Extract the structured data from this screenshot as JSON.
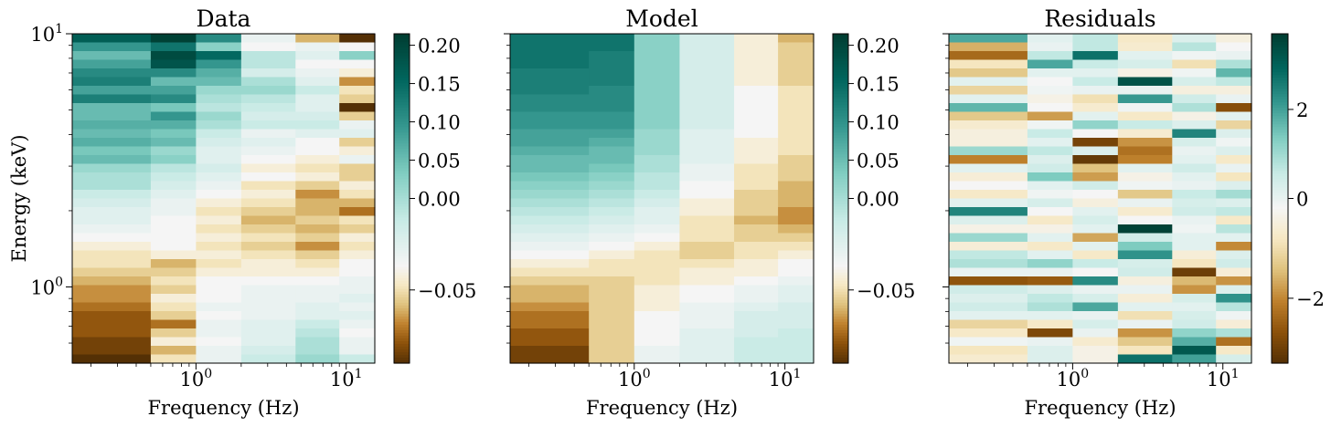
{
  "chart_data": [
    {
      "type": "heatmap",
      "title": "Data",
      "xlabel": "Frequency (Hz)",
      "ylabel": "Energy (keV)",
      "x_scale": "log",
      "y_scale": "log",
      "xlim": [
        0.15,
        15.5
      ],
      "ylim": [
        0.5,
        10
      ],
      "x_edges": [
        0.15,
        0.5,
        1.0,
        2.0,
        4.6,
        9.0,
        15.5
      ],
      "x_tick_labels": [
        "10^0",
        "10^1"
      ],
      "y_tick_labels": [
        "10^0",
        "10^1"
      ],
      "colormap": "BrBG",
      "colorbar": {
        "vmin": -0.09,
        "vmax": 0.215,
        "ticks": [
          -0.05,
          0.0,
          0.05,
          0.1,
          0.15,
          0.2
        ],
        "tick_labels": [
          "−0.05",
          "0.00",
          "0.05",
          "0.10",
          "0.15",
          "0.20"
        ]
      },
      "values_top_to_bottom": [
        [
          0.18,
          0.21,
          0.14,
          0.01,
          -0.04,
          -0.09
        ],
        [
          0.13,
          0.16,
          0.08,
          0.0,
          0.01,
          0.0
        ],
        [
          0.1,
          0.2,
          0.17,
          0.05,
          0.02,
          0.08
        ],
        [
          0.12,
          0.19,
          0.13,
          0.05,
          0.0,
          0.0
        ],
        [
          0.14,
          0.14,
          0.11,
          0.03,
          0.01,
          -0.01
        ],
        [
          0.15,
          0.1,
          0.1,
          0.06,
          0.02,
          -0.05
        ],
        [
          0.12,
          0.12,
          0.07,
          0.07,
          0.04,
          -0.02
        ],
        [
          0.15,
          0.14,
          0.06,
          0.05,
          0.02,
          -0.03
        ],
        [
          0.1,
          0.09,
          0.05,
          0.04,
          0.02,
          -0.09
        ],
        [
          0.1,
          0.13,
          0.07,
          0.03,
          0.03,
          -0.03
        ],
        [
          0.11,
          0.11,
          0.06,
          0.04,
          0.04,
          0.01
        ],
        [
          0.1,
          0.09,
          0.04,
          0.01,
          0.02,
          0.02
        ],
        [
          0.11,
          0.1,
          0.03,
          0.02,
          0.0,
          -0.03
        ],
        [
          0.09,
          0.07,
          0.02,
          0.01,
          0.0,
          -0.01
        ],
        [
          0.1,
          0.08,
          0.02,
          0.0,
          -0.01,
          0.01
        ],
        [
          0.07,
          0.05,
          0.03,
          -0.01,
          -0.02,
          -0.03
        ],
        [
          0.06,
          0.04,
          0.02,
          0.0,
          -0.01,
          -0.03
        ],
        [
          0.06,
          0.03,
          0.01,
          -0.02,
          -0.03,
          -0.01
        ],
        [
          0.04,
          0.02,
          0.0,
          -0.01,
          -0.05,
          -0.02
        ],
        [
          0.03,
          0.01,
          -0.01,
          -0.02,
          -0.04,
          -0.04
        ],
        [
          0.02,
          0.01,
          -0.02,
          -0.03,
          -0.04,
          -0.06
        ],
        [
          0.02,
          0.0,
          -0.01,
          -0.04,
          -0.03,
          -0.02
        ],
        [
          0.01,
          0.0,
          -0.02,
          -0.03,
          -0.04,
          -0.03
        ],
        [
          0.0,
          0.0,
          -0.01,
          -0.02,
          -0.03,
          -0.01
        ],
        [
          -0.01,
          0.0,
          -0.02,
          -0.03,
          -0.05,
          -0.02
        ],
        [
          -0.02,
          -0.01,
          -0.01,
          -0.02,
          -0.03,
          -0.01
        ],
        [
          -0.02,
          -0.04,
          -0.02,
          -0.01,
          -0.02,
          0.0
        ],
        [
          -0.03,
          -0.03,
          -0.01,
          -0.01,
          -0.01,
          0.0
        ],
        [
          -0.04,
          -0.02,
          0.0,
          0.0,
          0.0,
          0.01
        ],
        [
          -0.05,
          -0.03,
          0.0,
          0.01,
          0.01,
          0.01
        ],
        [
          -0.05,
          -0.01,
          0.0,
          0.01,
          0.01,
          0.02
        ],
        [
          -0.06,
          -0.02,
          0.01,
          0.01,
          0.02,
          0.01
        ],
        [
          -0.07,
          -0.03,
          0.0,
          0.01,
          0.02,
          0.02
        ],
        [
          -0.07,
          -0.06,
          0.01,
          0.02,
          0.04,
          0.01
        ],
        [
          -0.07,
          -0.03,
          0.01,
          0.02,
          0.05,
          0.0
        ],
        [
          -0.08,
          -0.01,
          0.0,
          0.02,
          0.06,
          0.01
        ],
        [
          -0.08,
          -0.04,
          0.01,
          0.03,
          0.06,
          0.01
        ],
        [
          -0.09,
          -0.02,
          0.01,
          0.04,
          0.07,
          0.04
        ]
      ]
    },
    {
      "type": "heatmap",
      "title": "Model",
      "xlabel": "Frequency (Hz)",
      "ylabel": "",
      "x_scale": "log",
      "y_scale": "log",
      "xlim": [
        0.15,
        15.5
      ],
      "ylim": [
        0.5,
        10
      ],
      "x_edges": [
        0.15,
        0.5,
        1.0,
        2.0,
        4.6,
        9.0,
        15.5
      ],
      "x_tick_labels": [
        "10^0",
        "10^1"
      ],
      "colormap": "BrBG",
      "colorbar": {
        "vmin": -0.09,
        "vmax": 0.215,
        "ticks": [
          -0.05,
          0.0,
          0.05,
          0.1,
          0.15,
          0.2
        ],
        "tick_labels": [
          "−0.05",
          "0.00",
          "0.05",
          "0.10",
          "0.15",
          "0.20"
        ]
      },
      "values_top_to_bottom": [
        [
          0.16,
          0.16,
          0.08,
          0.03,
          -0.01,
          -0.04
        ],
        [
          0.16,
          0.16,
          0.08,
          0.03,
          -0.01,
          -0.03
        ],
        [
          0.16,
          0.15,
          0.08,
          0.03,
          -0.01,
          -0.03
        ],
        [
          0.16,
          0.15,
          0.08,
          0.03,
          -0.01,
          -0.03
        ],
        [
          0.15,
          0.15,
          0.08,
          0.03,
          -0.01,
          -0.03
        ],
        [
          0.15,
          0.15,
          0.08,
          0.03,
          -0.01,
          -0.03
        ],
        [
          0.15,
          0.14,
          0.08,
          0.03,
          0.0,
          -0.02
        ],
        [
          0.14,
          0.14,
          0.08,
          0.03,
          0.0,
          -0.02
        ],
        [
          0.14,
          0.14,
          0.08,
          0.03,
          0.0,
          -0.02
        ],
        [
          0.13,
          0.13,
          0.08,
          0.03,
          0.0,
          -0.02
        ],
        [
          0.13,
          0.13,
          0.08,
          0.03,
          0.0,
          -0.02
        ],
        [
          0.12,
          0.12,
          0.07,
          0.02,
          0.0,
          -0.02
        ],
        [
          0.12,
          0.11,
          0.07,
          0.02,
          -0.01,
          -0.02
        ],
        [
          0.11,
          0.1,
          0.07,
          0.02,
          -0.01,
          -0.02
        ],
        [
          0.1,
          0.1,
          0.06,
          0.02,
          -0.01,
          -0.03
        ],
        [
          0.1,
          0.09,
          0.06,
          0.01,
          -0.02,
          -0.03
        ],
        [
          0.09,
          0.08,
          0.05,
          0.01,
          -0.02,
          -0.03
        ],
        [
          0.08,
          0.07,
          0.05,
          0.0,
          -0.02,
          -0.04
        ],
        [
          0.07,
          0.06,
          0.04,
          0.0,
          -0.03,
          -0.04
        ],
        [
          0.06,
          0.05,
          0.03,
          -0.01,
          -0.03,
          -0.04
        ],
        [
          0.05,
          0.04,
          0.02,
          -0.01,
          -0.03,
          -0.05
        ],
        [
          0.04,
          0.03,
          0.02,
          -0.02,
          -0.04,
          -0.05
        ],
        [
          0.03,
          0.02,
          0.01,
          -0.02,
          -0.03,
          -0.04
        ],
        [
          0.02,
          0.01,
          0.0,
          -0.02,
          -0.03,
          -0.03
        ],
        [
          0.01,
          0.0,
          -0.01,
          -0.03,
          -0.02,
          -0.02
        ],
        [
          0.0,
          -0.01,
          -0.02,
          -0.03,
          -0.02,
          -0.01
        ],
        [
          -0.01,
          -0.02,
          -0.02,
          -0.02,
          -0.01,
          0.0
        ],
        [
          -0.02,
          -0.02,
          -0.02,
          -0.01,
          -0.01,
          0.0
        ],
        [
          -0.03,
          -0.03,
          -0.02,
          -0.01,
          0.0,
          0.01
        ],
        [
          -0.04,
          -0.03,
          -0.01,
          0.0,
          0.01,
          0.02
        ],
        [
          -0.04,
          -0.03,
          -0.01,
          0.0,
          0.01,
          0.02
        ],
        [
          -0.05,
          -0.03,
          -0.01,
          0.01,
          0.02,
          0.03
        ],
        [
          -0.06,
          -0.03,
          0.0,
          0.01,
          0.03,
          0.03
        ],
        [
          -0.06,
          -0.03,
          0.0,
          0.01,
          0.03,
          0.03
        ],
        [
          -0.07,
          -0.03,
          0.0,
          0.02,
          0.03,
          0.04
        ],
        [
          -0.07,
          -0.03,
          0.0,
          0.02,
          0.04,
          0.04
        ],
        [
          -0.08,
          -0.03,
          0.01,
          0.02,
          0.04,
          0.04
        ],
        [
          -0.08,
          -0.03,
          0.01,
          0.02,
          0.04,
          0.04
        ]
      ]
    },
    {
      "type": "heatmap",
      "title": "Residuals",
      "xlabel": "Frequency (Hz)",
      "ylabel": "",
      "x_scale": "log",
      "y_scale": "log",
      "xlim": [
        0.15,
        15.5
      ],
      "ylim": [
        0.5,
        10
      ],
      "x_edges": [
        0.15,
        0.5,
        1.0,
        2.0,
        4.6,
        9.0,
        15.5
      ],
      "x_tick_labels": [
        "10^0",
        "10^1"
      ],
      "colormap": "BrBG",
      "colorbar": {
        "vmin": -3.3,
        "vmax": 3.7,
        "ticks": [
          -2,
          0,
          2
        ],
        "tick_labels": [
          "−2",
          "0",
          "2"
        ]
      },
      "values_top_to_bottom": [
        [
          2.0,
          0.3,
          0.8,
          -0.6,
          0.4,
          -0.3
        ],
        [
          -1.5,
          0.2,
          0.8,
          -0.5,
          0.9,
          0.0
        ],
        [
          -2.3,
          0.8,
          2.8,
          0.3,
          0.1,
          0.2
        ],
        [
          -0.7,
          2.0,
          0.7,
          0.5,
          -0.8,
          1.0
        ],
        [
          -1.2,
          0.3,
          0.3,
          -0.2,
          0.1,
          1.8
        ],
        [
          0.3,
          0.0,
          0.7,
          3.3,
          0.5,
          0.8
        ],
        [
          -1.0,
          0.1,
          0.2,
          0.2,
          -0.3,
          -0.3
        ],
        [
          0.3,
          -0.2,
          -0.8,
          2.2,
          0.6,
          0.2
        ],
        [
          1.8,
          0.0,
          -0.5,
          0.1,
          1.0,
          -2.7
        ],
        [
          -1.2,
          -1.7,
          0.3,
          -0.6,
          -0.2,
          0.3
        ],
        [
          -0.5,
          0.1,
          1.3,
          0.7,
          0.4,
          -1.0
        ],
        [
          -0.3,
          0.7,
          0.0,
          -0.5,
          2.5,
          0.4
        ],
        [
          -0.3,
          0.3,
          -2.9,
          -1.8,
          0.5,
          0.1
        ],
        [
          1.2,
          0.8,
          0.4,
          -2.2,
          0.2,
          0.4
        ],
        [
          -2.0,
          0.4,
          -3.1,
          -2.0,
          0.3,
          -0.6
        ],
        [
          0.3,
          0.6,
          -1.3,
          0.3,
          0.6,
          0.2
        ],
        [
          -0.4,
          1.5,
          -1.7,
          -0.2,
          0.3,
          -0.7
        ],
        [
          0.0,
          0.3,
          0.6,
          0.1,
          0.2,
          0.4
        ],
        [
          -0.6,
          0.1,
          0.0,
          -1.2,
          0.7,
          1.1
        ],
        [
          0.3,
          0.5,
          -0.3,
          0.2,
          0.5,
          0.4
        ],
        [
          2.5,
          0.0,
          0.3,
          -0.5,
          0.6,
          0.8
        ],
        [
          0.4,
          -0.6,
          0.5,
          0.0,
          0.2,
          -0.6
        ],
        [
          -0.2,
          -0.2,
          0.3,
          3.6,
          0.1,
          0.9
        ],
        [
          1.2,
          0.3,
          -1.6,
          0.6,
          0.3,
          0.3
        ],
        [
          -0.4,
          -0.6,
          0.3,
          1.5,
          0.3,
          -1.9
        ],
        [
          0.8,
          0.3,
          -0.6,
          2.3,
          -0.4,
          0.4
        ],
        [
          1.0,
          1.3,
          0.7,
          0.5,
          -0.7,
          0.6
        ],
        [
          0.2,
          0.2,
          0.0,
          0.6,
          -3.0,
          -0.4
        ],
        [
          -2.6,
          -2.5,
          2.4,
          -0.3,
          -1.4,
          -1.8
        ],
        [
          0.6,
          0.4,
          0.2,
          0.2,
          -1.8,
          0.4
        ],
        [
          0.4,
          0.8,
          0.5,
          -0.4,
          0.5,
          2.3
        ],
        [
          0.6,
          1.0,
          2.0,
          0.3,
          0.3,
          0.9
        ],
        [
          0.3,
          0.3,
          0.2,
          -0.8,
          0.5,
          0.1
        ],
        [
          -1.0,
          -0.6,
          0.5,
          0.2,
          0.6,
          -0.4
        ],
        [
          -0.6,
          -2.8,
          0.2,
          -1.8,
          1.3,
          1.0
        ],
        [
          0.1,
          0.2,
          -0.5,
          -1.2,
          1.9,
          -2.2
        ],
        [
          -0.7,
          0.4,
          -0.2,
          -0.7,
          3.2,
          -0.6
        ],
        [
          -0.5,
          0.4,
          -0.2,
          2.8,
          2.1,
          0.5
        ]
      ]
    }
  ]
}
